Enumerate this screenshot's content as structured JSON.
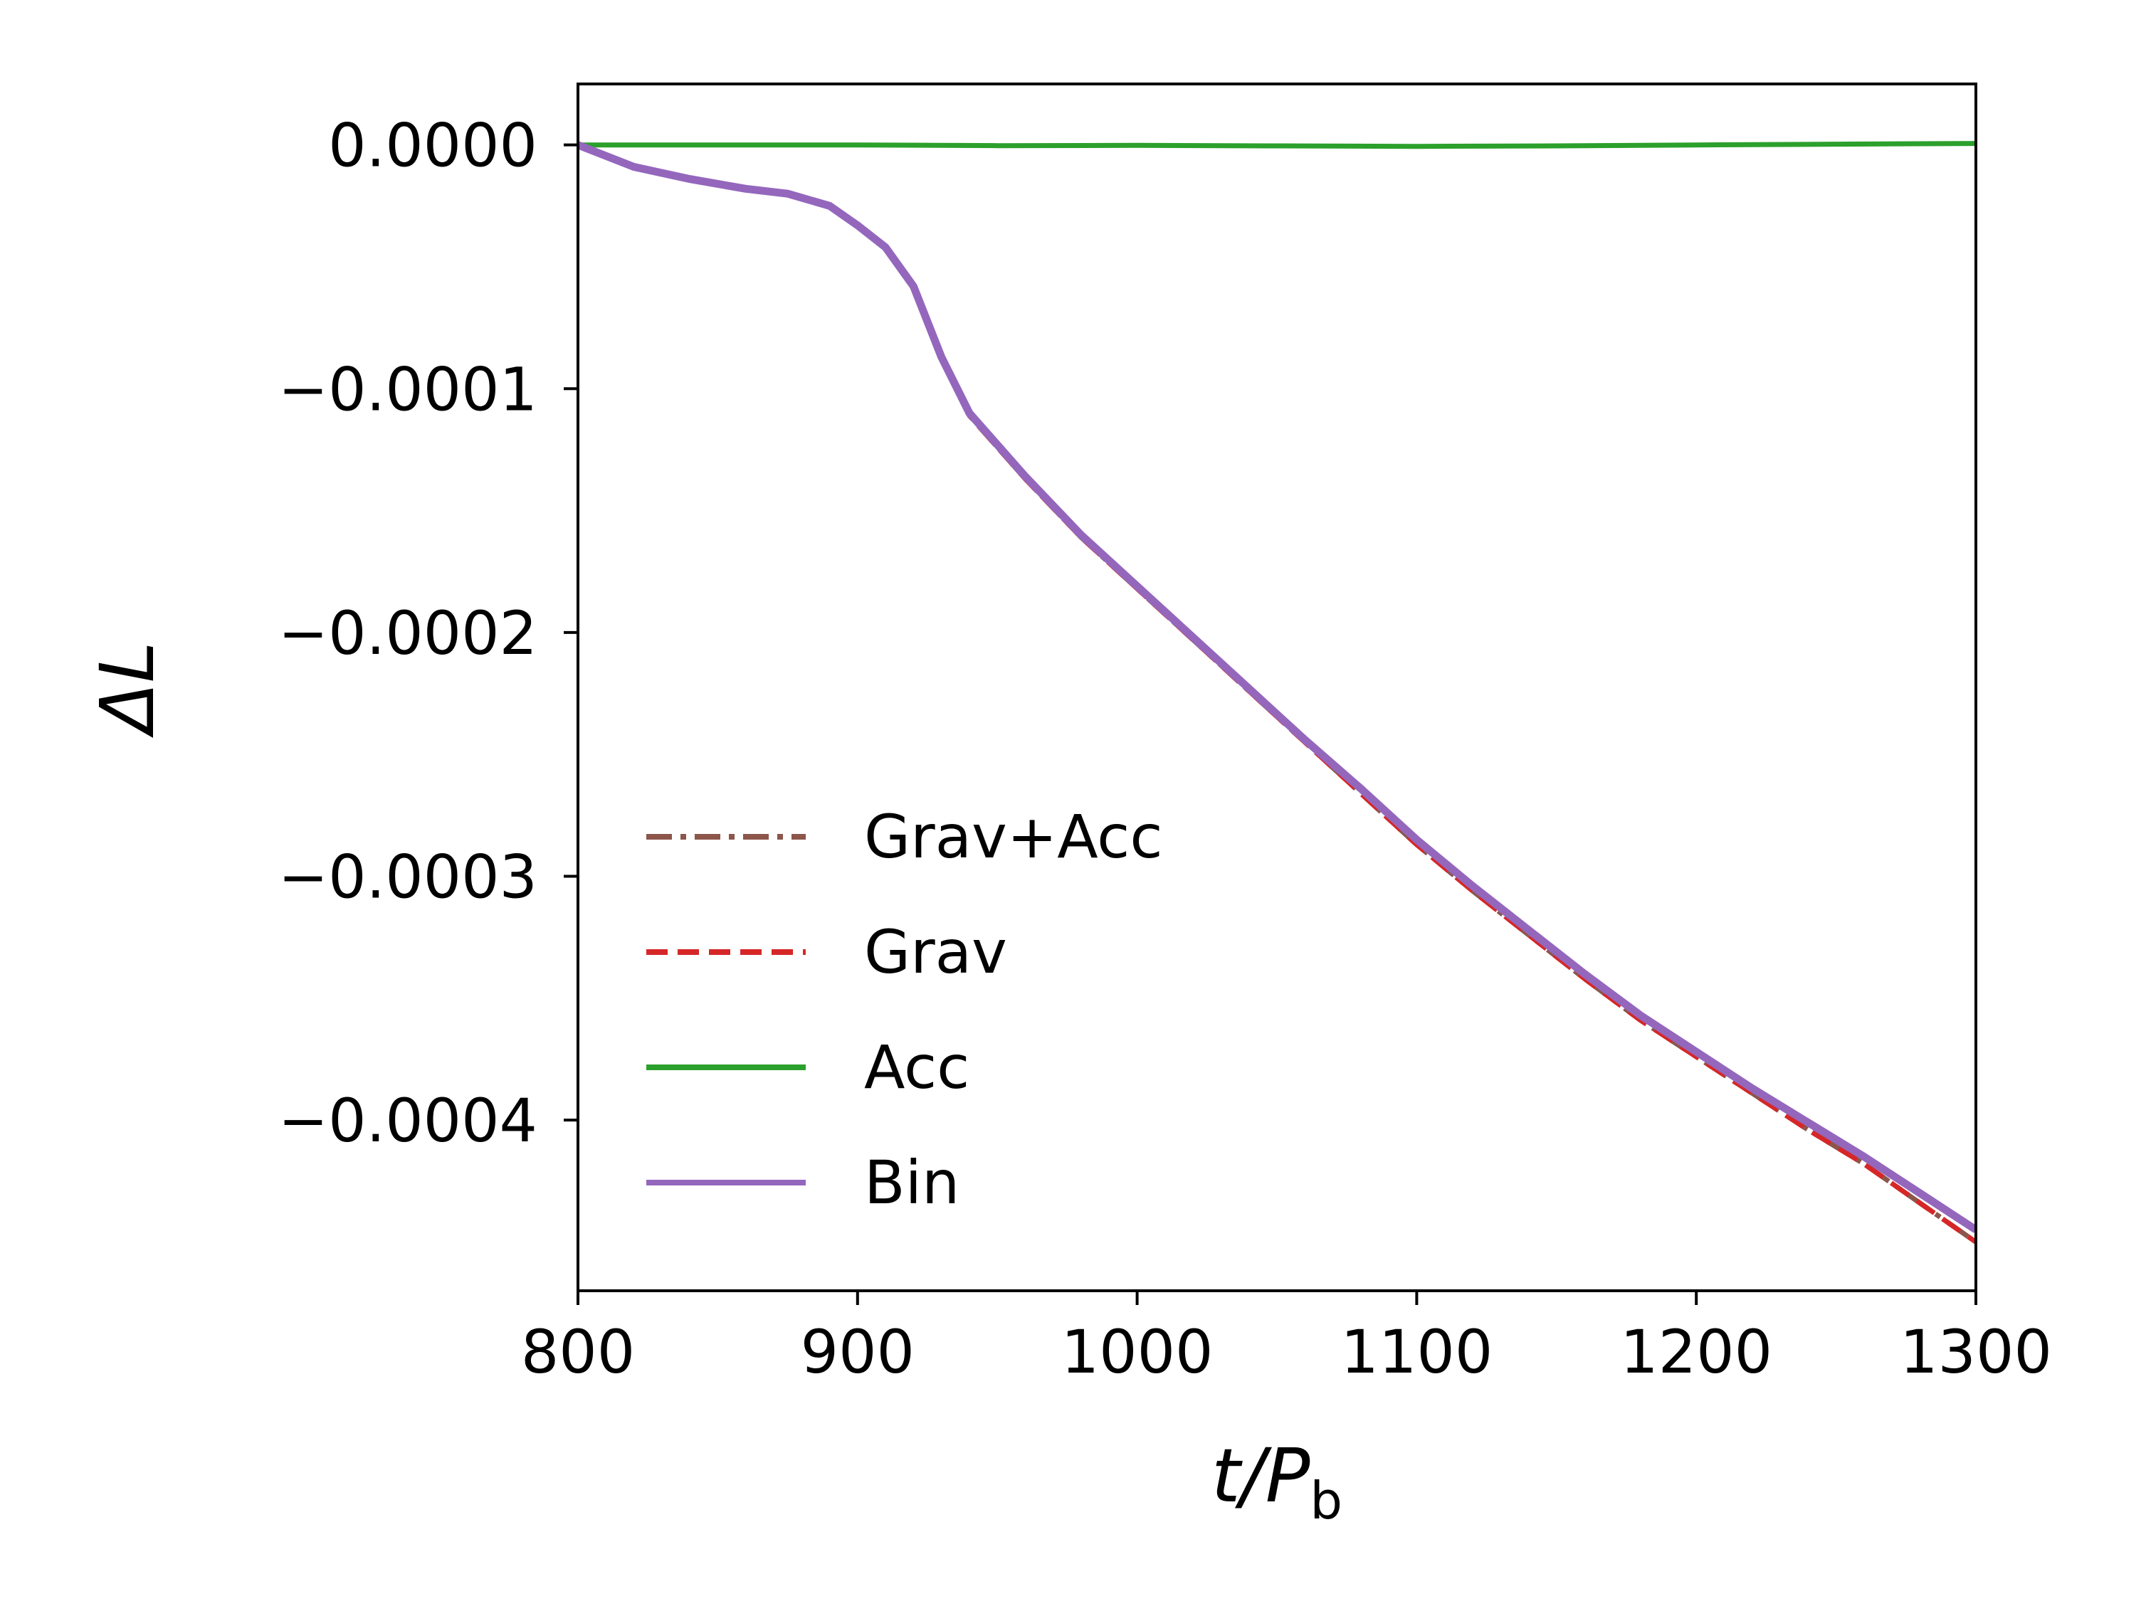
{
  "chart_data": {
    "type": "line",
    "xlabel": {
      "main": "t/P",
      "sub": "b"
    },
    "ylabel": "ΔL",
    "xlim": [
      800,
      1300
    ],
    "ylim": [
      -0.00047,
      2.5e-05
    ],
    "x_ticks": [
      800,
      900,
      1000,
      1100,
      1200,
      1300
    ],
    "x_tick_labels": [
      "800",
      "900",
      "1000",
      "1100",
      "1200",
      "1300"
    ],
    "y_ticks": [
      0,
      -0.0001,
      -0.0002,
      -0.0003,
      -0.0004
    ],
    "y_tick_labels": [
      "0.0000",
      "−0.0001",
      "−0.0002",
      "−0.0003",
      "−0.0004"
    ],
    "grid": false,
    "legend_position": "lower-left",
    "series": [
      {
        "name": "Grav+Acc",
        "color": "#8c564b",
        "style": "dashdot",
        "x": [
          800,
          820,
          840,
          860,
          875,
          890,
          900,
          910,
          920,
          930,
          940,
          960,
          980,
          1000,
          1020,
          1040,
          1060,
          1080,
          1100,
          1120,
          1140,
          1160,
          1180,
          1200,
          1220,
          1240,
          1260,
          1280,
          1300
        ],
        "y": [
          0,
          -9e-06,
          -1.4e-05,
          -1.8e-05,
          -2e-05,
          -2.5e-05,
          -3.3e-05,
          -4.2e-05,
          -5.8e-05,
          -8.8e-05,
          -0.000111,
          -0.000137,
          -0.000161,
          -0.000182,
          -0.000203,
          -0.000224,
          -0.000245,
          -0.000266,
          -0.000287,
          -0.000306,
          -0.000324,
          -0.000342,
          -0.000359,
          -0.000374,
          -0.000389,
          -0.000404,
          -0.000418,
          -0.000434,
          -0.00045
        ]
      },
      {
        "name": "Grav",
        "color": "#d62728",
        "style": "dashed",
        "x": [
          800,
          820,
          840,
          860,
          875,
          890,
          900,
          910,
          920,
          930,
          940,
          960,
          980,
          1000,
          1020,
          1040,
          1060,
          1080,
          1100,
          1120,
          1140,
          1160,
          1180,
          1200,
          1220,
          1240,
          1260,
          1280,
          1300
        ],
        "y": [
          0,
          -9e-06,
          -1.4e-05,
          -1.8e-05,
          -2e-05,
          -2.5e-05,
          -3.3e-05,
          -4.2e-05,
          -5.8e-05,
          -8.8e-05,
          -0.000111,
          -0.000137,
          -0.000161,
          -0.000182,
          -0.000203,
          -0.000224,
          -0.000245,
          -0.000266,
          -0.000287,
          -0.000306,
          -0.000324,
          -0.000342,
          -0.000359,
          -0.000374,
          -0.000389,
          -0.000404,
          -0.000418,
          -0.000434,
          -0.00045
        ]
      },
      {
        "name": "Acc",
        "color": "#2ca02c",
        "style": "solid",
        "x": [
          800,
          900,
          950,
          1000,
          1050,
          1100,
          1150,
          1200,
          1250,
          1300
        ],
        "y": [
          0,
          0,
          -3e-07,
          -2e-07,
          -4e-07,
          -6e-07,
          -4e-07,
          0,
          3e-07,
          6e-07
        ]
      },
      {
        "name": "Bin",
        "color": "#9467bd",
        "style": "solid",
        "x": [
          800,
          820,
          840,
          860,
          875,
          890,
          900,
          910,
          920,
          930,
          940,
          960,
          980,
          1000,
          1020,
          1040,
          1060,
          1080,
          1100,
          1120,
          1140,
          1160,
          1180,
          1200,
          1220,
          1240,
          1260,
          1280,
          1300
        ],
        "y": [
          0,
          -9e-06,
          -1.4e-05,
          -1.8e-05,
          -2e-05,
          -2.5e-05,
          -3.3e-05,
          -4.2e-05,
          -5.8e-05,
          -8.7e-05,
          -0.00011,
          -0.000136,
          -0.00016,
          -0.000181,
          -0.000202,
          -0.000223,
          -0.000244,
          -0.000264,
          -0.000285,
          -0.000304,
          -0.000322,
          -0.00034,
          -0.000357,
          -0.000372,
          -0.000387,
          -0.000401,
          -0.000415,
          -0.00043,
          -0.000445
        ]
      }
    ]
  }
}
